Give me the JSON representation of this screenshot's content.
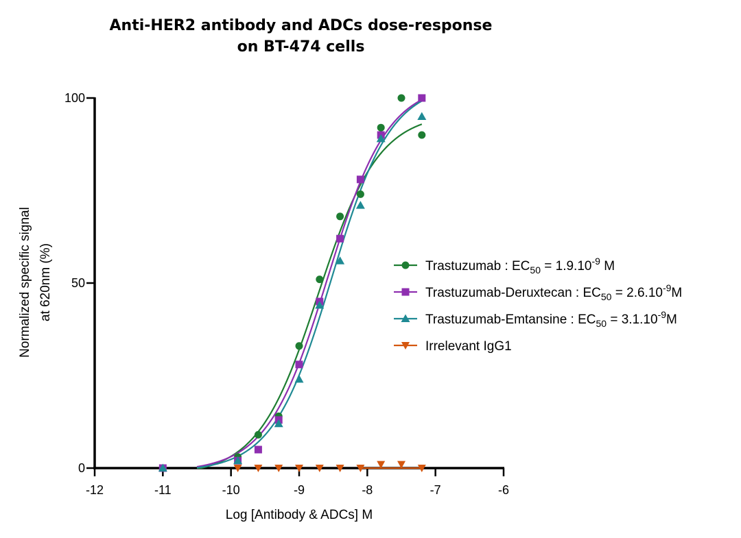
{
  "title": {
    "line1": "Anti-HER2 antibody and ADCs dose-response",
    "line2": "on BT-474 cells"
  },
  "chart_data": {
    "type": "scatter",
    "title": "Anti-HER2 antibody and ADCs dose-response on BT-474 cells",
    "xlabel": "Log [Antibody & ADCs] M",
    "ylabel_line1": "Normalized specific signal",
    "ylabel_line2": "at 620nm (%)",
    "xlim": [
      -12,
      -6
    ],
    "ylim": [
      0,
      100
    ],
    "x_ticks": [
      -12,
      -11,
      -10,
      -9,
      -8,
      -7,
      -6
    ],
    "x_tick_labels": [
      "-12",
      "-11",
      "-10",
      "-9",
      "-8",
      "-7",
      "-6"
    ],
    "y_ticks": [
      0,
      50,
      100
    ],
    "y_tick_labels": [
      "0",
      "50",
      "100"
    ],
    "legend_position": "right",
    "series": [
      {
        "name": "Trastuzumab",
        "legend": {
          "prefix": "Trastuzumab : EC",
          "sub": "50",
          "mid": " = 1.9.10",
          "sup": "-9",
          "suffix": " M"
        },
        "color": "#1e7d32",
        "marker": "circle",
        "x": [
          -11,
          -9.9,
          -9.6,
          -9.3,
          -9.0,
          -8.7,
          -8.4,
          -8.1,
          -7.8,
          -7.5,
          -7.2
        ],
        "y": [
          0,
          3,
          9,
          14,
          33,
          51,
          68,
          74,
          92,
          100,
          90
        ],
        "fit": {
          "bottom": -2,
          "top": 96,
          "logEC50": -8.72,
          "hill": 0.98
        }
      },
      {
        "name": "Trastuzumab-Deruxtecan",
        "legend": {
          "prefix": "Trastuzumab-Deruxtecan : EC",
          "sub": "50",
          "mid": " = 2.6.10",
          "sup": "-9",
          "suffix": "M"
        },
        "color": "#8e2fb0",
        "marker": "square",
        "x": [
          -11,
          -9.9,
          -9.6,
          -9.3,
          -9.0,
          -8.7,
          -8.4,
          -8.1,
          -7.8,
          -7.2
        ],
        "y": [
          0,
          2,
          5,
          13,
          28,
          45,
          62,
          78,
          90,
          100
        ],
        "fit": {
          "bottom": -1,
          "top": 104,
          "logEC50": -8.58,
          "hill": 0.98
        }
      },
      {
        "name": "Trastuzumab-Emtansine",
        "legend": {
          "prefix": "Trastuzumab-Emtansine : EC",
          "sub": "50",
          "mid": " = 3.1.10",
          "sup": "-9",
          "suffix": "M"
        },
        "color": "#1f8a94",
        "marker": "triangle-up",
        "x": [
          -11,
          -9.9,
          -9.3,
          -9.0,
          -8.7,
          -8.4,
          -8.1,
          -7.8,
          -7.2
        ],
        "y": [
          0,
          2,
          12,
          24,
          44,
          56,
          71,
          89,
          95
        ],
        "fit": {
          "bottom": -1,
          "top": 104,
          "logEC50": -8.52,
          "hill": 1.0
        }
      },
      {
        "name": "Irrelevant IgG1",
        "legend": {
          "prefix": "Irrelevant IgG1",
          "sub": "",
          "mid": "",
          "sup": "",
          "suffix": ""
        },
        "color": "#d4570f",
        "marker": "triangle-down",
        "x": [
          -9.9,
          -9.6,
          -9.3,
          -9.0,
          -8.7,
          -8.4,
          -8.1,
          -7.8,
          -7.5,
          -7.2
        ],
        "y": [
          0,
          0,
          0,
          0,
          0,
          0,
          0,
          1,
          1,
          0
        ],
        "fit": null
      }
    ]
  }
}
